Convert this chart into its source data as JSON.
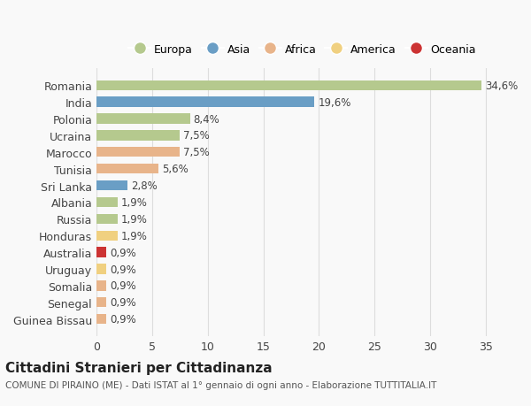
{
  "countries": [
    "Romania",
    "India",
    "Polonia",
    "Ucraina",
    "Marocco",
    "Tunisia",
    "Sri Lanka",
    "Albania",
    "Russia",
    "Honduras",
    "Australia",
    "Uruguay",
    "Somalia",
    "Senegal",
    "Guinea Bissau"
  ],
  "values": [
    34.6,
    19.6,
    8.4,
    7.5,
    7.5,
    5.6,
    2.8,
    1.9,
    1.9,
    1.9,
    0.9,
    0.9,
    0.9,
    0.9,
    0.9
  ],
  "labels": [
    "34,6%",
    "19,6%",
    "8,4%",
    "7,5%",
    "7,5%",
    "5,6%",
    "2,8%",
    "1,9%",
    "1,9%",
    "1,9%",
    "0,9%",
    "0,9%",
    "0,9%",
    "0,9%",
    "0,9%"
  ],
  "colors": [
    "#b5c98e",
    "#6a9ec5",
    "#b5c98e",
    "#b5c98e",
    "#e8b48a",
    "#e8b48a",
    "#6a9ec5",
    "#b5c98e",
    "#b5c98e",
    "#f0d080",
    "#cc3333",
    "#f0d080",
    "#e8b48a",
    "#e8b48a",
    "#e8b48a"
  ],
  "legend_labels": [
    "Europa",
    "Asia",
    "Africa",
    "America",
    "Oceania"
  ],
  "legend_colors": [
    "#b5c98e",
    "#6a9ec5",
    "#e8b48a",
    "#f0d080",
    "#cc3333"
  ],
  "title": "Cittadini Stranieri per Cittadinanza",
  "subtitle": "COMUNE DI PIRAINO (ME) - Dati ISTAT al 1° gennaio di ogni anno - Elaborazione TUTTITALIA.IT",
  "xlim": [
    0,
    37
  ],
  "background_color": "#f9f9f9",
  "grid_color": "#dddddd",
  "text_color": "#444444"
}
